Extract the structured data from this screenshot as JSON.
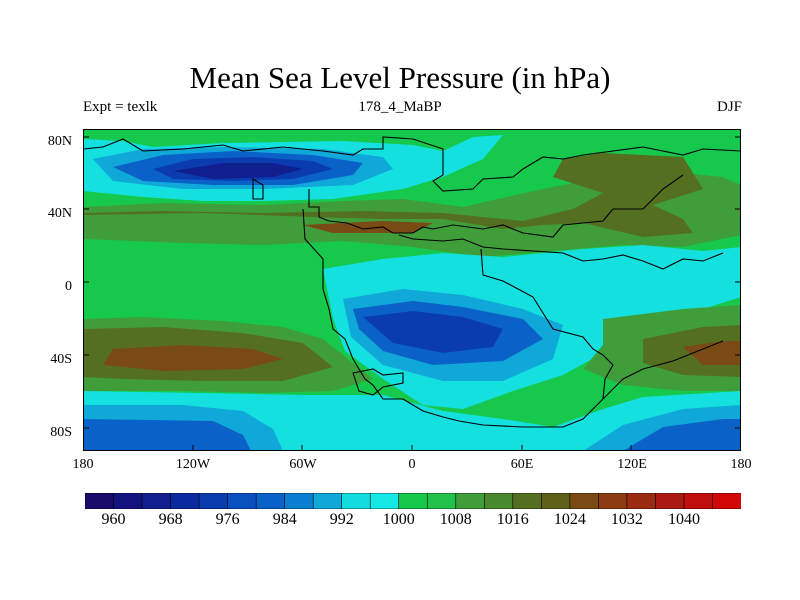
{
  "title": "Mean Sea Level Pressure (in hPa)",
  "subtitle_left": "Expt = texlk",
  "subtitle_center": "178_4_MaBP",
  "subtitle_right": "DJF",
  "lat_labels": [
    "80N",
    "40N",
    "0",
    "40S",
    "80S"
  ],
  "lon_labels": [
    "180",
    "120W",
    "60W",
    "0",
    "60E",
    "120E",
    "180"
  ],
  "colorbar": {
    "colors": [
      "#1a0a6b",
      "#14137e",
      "#101e8e",
      "#0c2aa0",
      "#0a3cb0",
      "#0a4fc0",
      "#0a62c8",
      "#0a7fd0",
      "#10a8d8",
      "#13dce0",
      "#16e8e8",
      "#15c84a",
      "#22c24a",
      "#3f9e3a",
      "#4a8a2e",
      "#556f20",
      "#5e6018",
      "#7a4a14",
      "#8c3a10",
      "#9a2a10",
      "#aa1a12",
      "#bf0f0f",
      "#d20606"
    ],
    "labels": [
      "960",
      "968",
      "976",
      "984",
      "992",
      "1000",
      "1008",
      "1016",
      "1024",
      "1032",
      "1040"
    ]
  }
}
